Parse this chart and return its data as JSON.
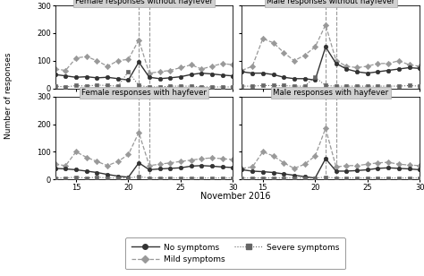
{
  "x": [
    13,
    14,
    15,
    16,
    17,
    18,
    19,
    20,
    21,
    22,
    23,
    24,
    25,
    26,
    27,
    28,
    29,
    30
  ],
  "panels": {
    "female_no_hf": {
      "title": "Female responses without hayfever",
      "no_symptoms": [
        50,
        45,
        40,
        42,
        38,
        40,
        35,
        30,
        95,
        40,
        35,
        38,
        42,
        50,
        55,
        52,
        48,
        45
      ],
      "mild_symptoms": [
        70,
        65,
        110,
        115,
        100,
        80,
        100,
        105,
        175,
        55,
        60,
        65,
        75,
        85,
        70,
        80,
        90,
        85
      ],
      "severe_symptoms": [
        8,
        5,
        10,
        8,
        12,
        10,
        8,
        60,
        10,
        5,
        5,
        8,
        8,
        8,
        5,
        5,
        5,
        5
      ]
    },
    "male_no_hf": {
      "title": "Male responses without hayfever",
      "no_symptoms": [
        60,
        55,
        55,
        50,
        40,
        35,
        35,
        30,
        150,
        90,
        70,
        60,
        55,
        60,
        65,
        70,
        75,
        72
      ],
      "mild_symptoms": [
        65,
        80,
        180,
        165,
        130,
        100,
        120,
        150,
        230,
        100,
        80,
        75,
        80,
        90,
        90,
        100,
        85,
        80
      ],
      "severe_symptoms": [
        8,
        8,
        10,
        10,
        10,
        8,
        8,
        40,
        10,
        8,
        8,
        8,
        8,
        8,
        8,
        8,
        10,
        8
      ]
    },
    "female_hf": {
      "title": "Female responses with hayfever",
      "no_symptoms": [
        40,
        38,
        35,
        30,
        25,
        18,
        12,
        8,
        60,
        35,
        38,
        40,
        42,
        48,
        50,
        48,
        45,
        43
      ],
      "mild_symptoms": [
        55,
        50,
        100,
        80,
        65,
        50,
        65,
        90,
        170,
        50,
        55,
        60,
        65,
        70,
        75,
        78,
        75,
        72
      ],
      "severe_symptoms": [
        5,
        5,
        8,
        5,
        8,
        5,
        5,
        5,
        10,
        5,
        5,
        5,
        5,
        5,
        5,
        5,
        5,
        5
      ]
    },
    "male_hf": {
      "title": "Male responses with hayfever",
      "no_symptoms": [
        35,
        30,
        28,
        25,
        20,
        15,
        10,
        5,
        75,
        30,
        30,
        32,
        35,
        40,
        42,
        40,
        38,
        35
      ],
      "mild_symptoms": [
        40,
        45,
        100,
        85,
        60,
        40,
        55,
        85,
        185,
        45,
        50,
        50,
        55,
        60,
        62,
        55,
        52,
        50
      ],
      "severe_symptoms": [
        5,
        5,
        5,
        5,
        5,
        5,
        5,
        5,
        8,
        5,
        5,
        5,
        5,
        5,
        5,
        5,
        5,
        5
      ]
    }
  },
  "vlines": [
    21,
    22
  ],
  "ylim": [
    0,
    300
  ],
  "yticks": [
    0,
    100,
    200,
    300
  ],
  "xticks": [
    15,
    20,
    25,
    30
  ],
  "xlim": [
    13,
    30
  ],
  "xlabel": "November 2016",
  "ylabel": "Number of responses",
  "no_symptoms_color": "#333333",
  "mild_symptoms_color": "#999999",
  "severe_symptoms_color": "#666666",
  "background_color": "#ffffff",
  "panel_title_bg": "#d0d0d0",
  "legend_no": "No symptoms",
  "legend_mild": "Mild symptoms",
  "legend_severe": "Severe symptoms"
}
